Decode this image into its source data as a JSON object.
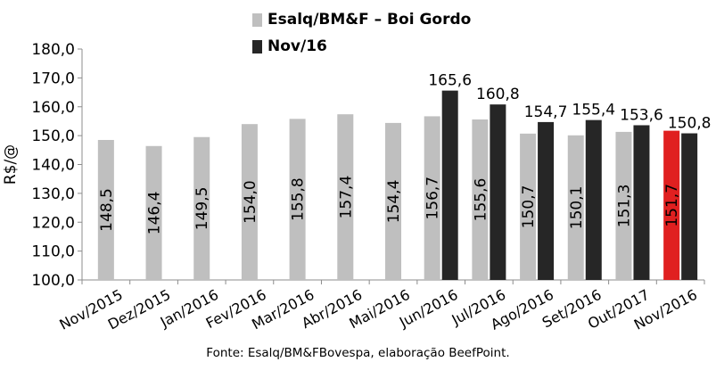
{
  "chart_data": {
    "type": "bar",
    "ylabel": "R$/@",
    "ylim": [
      100,
      180
    ],
    "yticks": [
      "100,0",
      "110,0",
      "120,0",
      "130,0",
      "140,0",
      "150,0",
      "160,0",
      "170,0",
      "180,0"
    ],
    "categories": [
      "Nov/2015",
      "Dez/2015",
      "Jan/2016",
      "Fev/2016",
      "Mar/2016",
      "Abr/2016",
      "Mai/2016",
      "Jun/2016",
      "Jul/2016",
      "Ago/2016",
      "Set/2016",
      "Out/2017",
      "Nov/2016"
    ],
    "series": [
      {
        "name": "Esalq/BM&F – Boi Gordo",
        "color": "#bfbfbf",
        "values": [
          148.5,
          146.4,
          149.5,
          154.0,
          155.8,
          157.4,
          154.4,
          156.7,
          155.6,
          150.7,
          150.1,
          151.3,
          151.7
        ],
        "labels": [
          "148,5",
          "146,4",
          "149,5",
          "154,0",
          "155,8",
          "157,4",
          "154,4",
          "156,7",
          "155,6",
          "150,7",
          "150,1",
          "151,3",
          "151,7"
        ],
        "highlight_index": 12,
        "highlight_color": "#e02020"
      },
      {
        "name": "Nov/16",
        "color": "#262626",
        "values": [
          null,
          null,
          null,
          null,
          null,
          null,
          null,
          165.6,
          160.8,
          154.7,
          155.4,
          153.6,
          150.8
        ],
        "labels": [
          "",
          "",
          "",
          "",
          "",
          "",
          "",
          "165,6",
          "160,8",
          "154,7",
          "155,4",
          "153,6",
          "150,8"
        ]
      }
    ],
    "grid": false,
    "legend_position": "top-center"
  },
  "footer": {
    "source": "Fonte: Esalq/BM&FBovespa, elaboração BeefPoint."
  }
}
